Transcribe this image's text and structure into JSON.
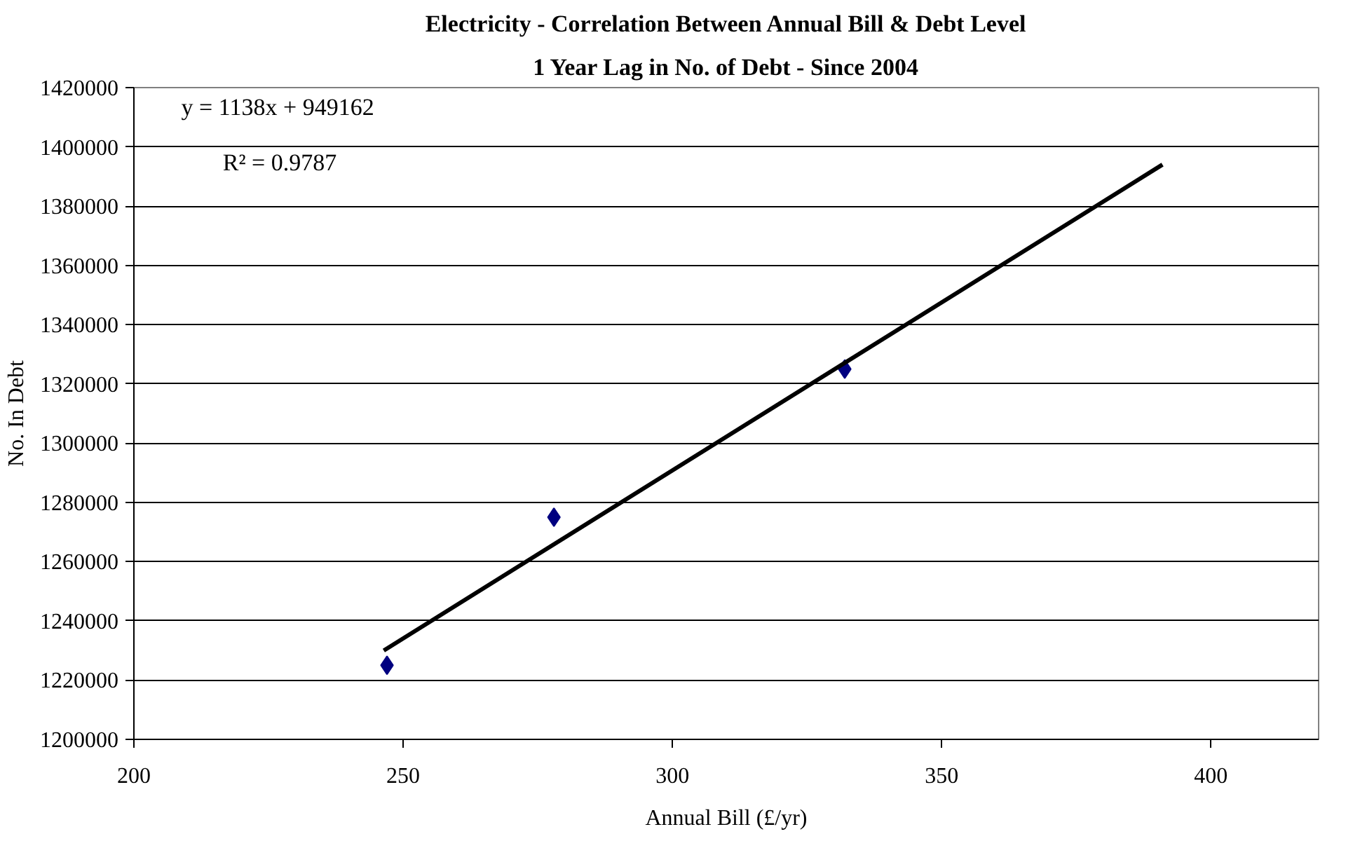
{
  "chart_data": {
    "type": "scatter",
    "title": "Electricity - Correlation Between Annual Bill & Debt Level",
    "subtitle": "1 Year Lag in No. of Debt - Since 2004",
    "xlabel": "Annual Bill (£/yr)",
    "ylabel": "No. In Debt",
    "annotations": [
      "y = 1138x + 949162",
      "R² = 0.9787"
    ],
    "series": [
      {
        "color": "#000080",
        "marker": "diamond",
        "x": [
          247,
          278,
          332
        ],
        "values": [
          1225000,
          1275000,
          1325000
        ]
      },
      {
        "type": "line",
        "color": "#000000",
        "marker": "none",
        "line_style": "solid",
        "x": [
          246.4,
          391
        ],
        "values": [
          1230000,
          1394000
        ]
      }
    ],
    "xlim": [
      200,
      420
    ],
    "xticks": [
      200,
      250,
      300,
      350,
      400
    ],
    "ylim": [
      1200000,
      1420000
    ],
    "yticks": [
      1200000,
      1220000,
      1240000,
      1260000,
      1280000,
      1300000,
      1320000,
      1340000,
      1360000,
      1380000,
      1400000,
      1420000
    ],
    "grid": "y"
  }
}
